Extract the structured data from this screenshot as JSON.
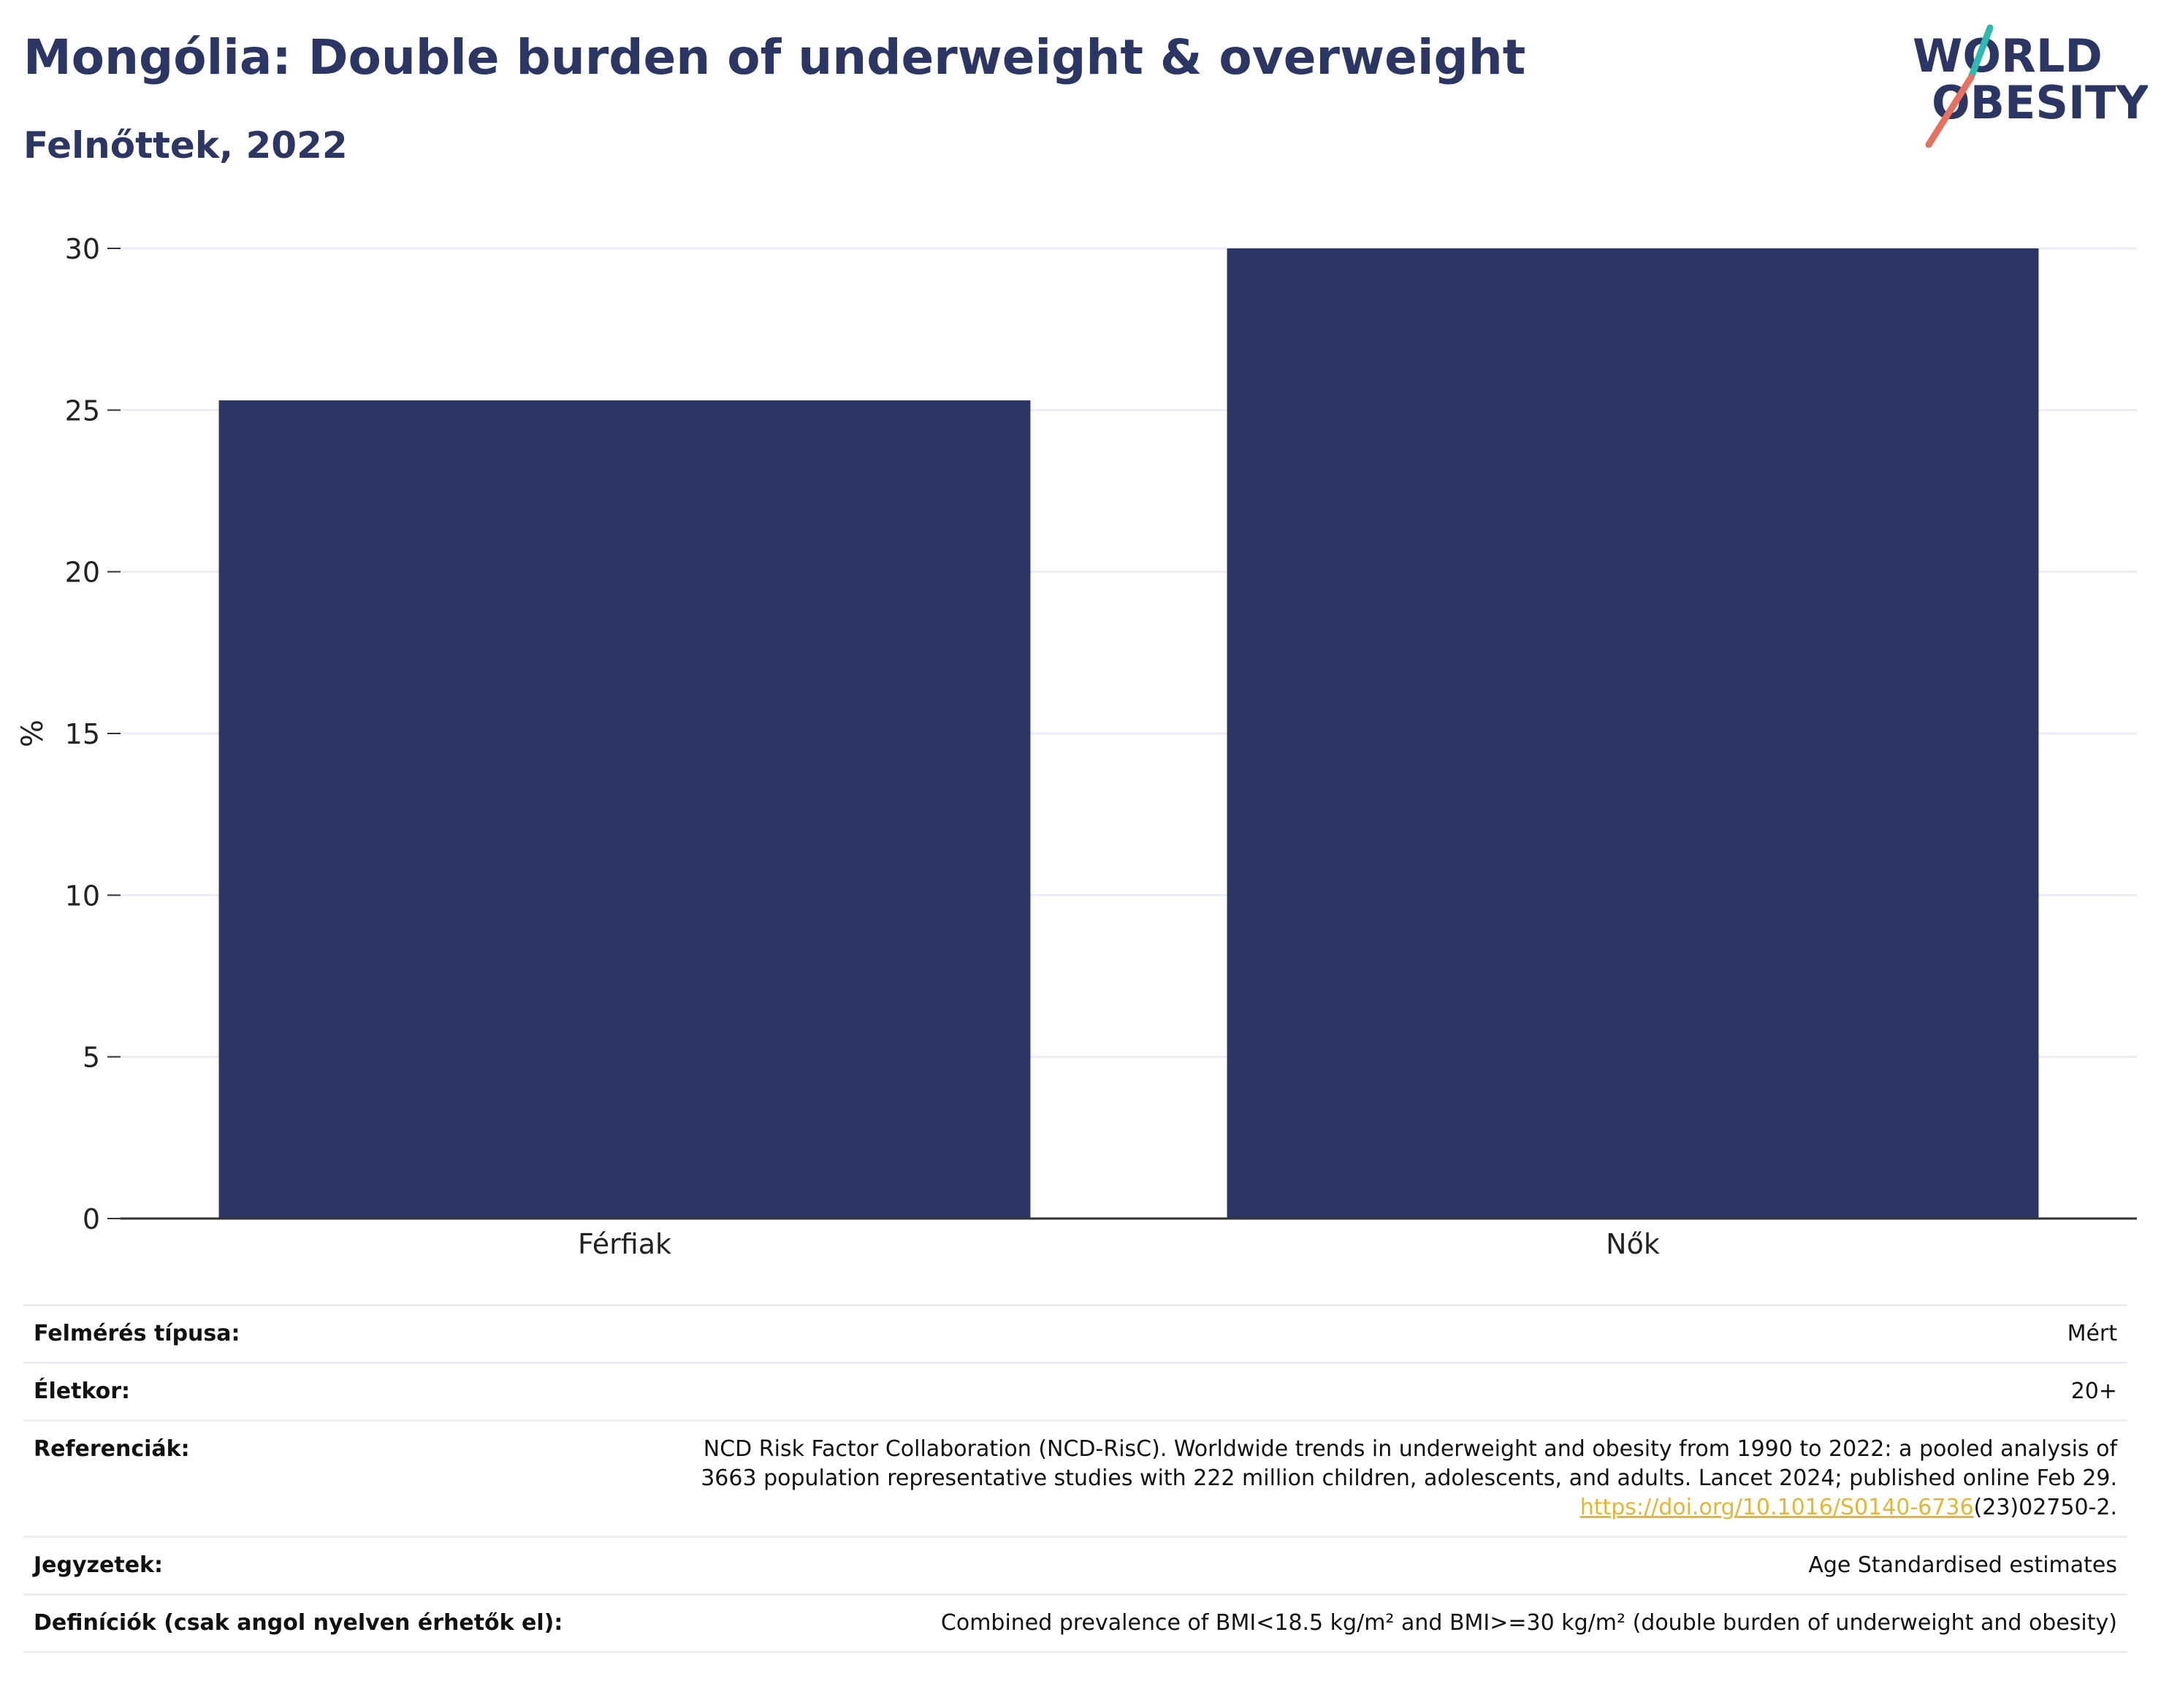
{
  "header": {
    "title": "Mongólia: Double burden of underweight & overweight",
    "subtitle": "Felnőttek, 2022"
  },
  "logo": {
    "line1": "WORLD",
    "line2": "OBESITY"
  },
  "colors": {
    "bar": "#2b3664",
    "title": "#2b3664",
    "grid": "#eceef6",
    "axis": "#333333",
    "link": "#e8b532",
    "logo_teal": "#2bbbb0",
    "logo_coral": "#e8705e"
  },
  "chart_data": {
    "type": "bar",
    "categories": [
      "Férfiak",
      "Nők"
    ],
    "values": [
      25.3,
      30.0
    ],
    "title": "Mongólia: Double burden of underweight & overweight",
    "xlabel": "",
    "ylabel": "%",
    "ylim": [
      0,
      30
    ],
    "yticks": [
      0,
      5,
      10,
      15,
      20,
      25,
      30
    ],
    "grid": true
  },
  "info": {
    "survey_label": "Felmérés típusa:",
    "survey_value": "Mért",
    "age_label": "Életkor:",
    "age_value": "20+",
    "ref_label": "Referenciák:",
    "ref_line1": "NCD Risk Factor Collaboration (NCD-RisC). Worldwide trends in underweight and obesity from 1990 to 2022: a pooled analysis of",
    "ref_line2": "3663 population representative studies with 222 million children, adolescents, and adults. Lancet 2024; published online Feb 29.",
    "ref_link": "https://doi.org/10.1016/S0140-6736",
    "ref_link_tail": "(23)02750-2.",
    "notes_label": "Jegyzetek:",
    "notes_value": "Age Standardised estimates",
    "def_label": "Definíciók (csak angol nyelven érhetők el):",
    "def_value": "Combined prevalence of BMI<18.5 kg/m² and BMI>=30 kg/m² (double burden of underweight and obesity)"
  }
}
